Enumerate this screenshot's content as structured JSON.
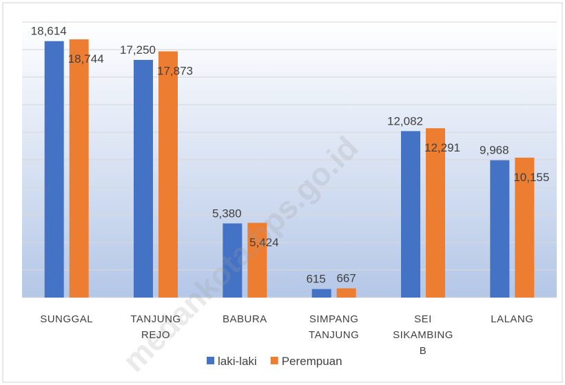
{
  "chart_data": {
    "type": "bar",
    "categories": [
      "SUNGGAL",
      "TANJUNG REJO",
      "BABURA",
      "SIMPANG TANJUNG",
      "SEI SIKAMBING B",
      "LALANG"
    ],
    "series": [
      {
        "name": "laki-laki",
        "color": "#4472c4",
        "values": [
          18614,
          17250,
          5380,
          615,
          12082,
          9968
        ],
        "value_labels": [
          "18,614",
          "17,250",
          "5,380",
          "615",
          "12,082",
          "9,968"
        ]
      },
      {
        "name": "Perempuan",
        "color": "#ed7d31",
        "values": [
          18744,
          17873,
          5424,
          667,
          12291,
          10155
        ],
        "value_labels": [
          "18,744",
          "17,873",
          "5,424",
          "667",
          "12,291",
          "10,155"
        ]
      }
    ],
    "ylim": [
      0,
      20000
    ],
    "yticks": [
      0,
      2000,
      4000,
      6000,
      8000,
      10000,
      12000,
      14000,
      16000,
      18000,
      20000
    ],
    "grid": true,
    "legend": "bottom",
    "watermark": "medankota.bps.go.id"
  }
}
